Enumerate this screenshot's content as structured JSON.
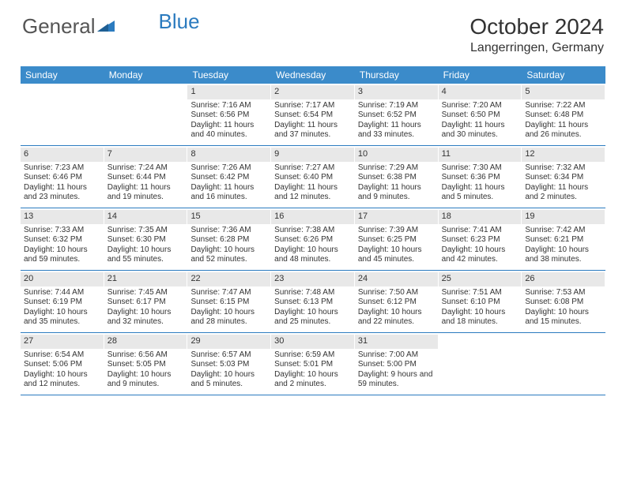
{
  "brand": {
    "part1": "General",
    "part2": "Blue"
  },
  "title": "October 2024",
  "location": "Langerringen, Germany",
  "colors": {
    "header_bg": "#3b8bca",
    "header_text": "#ffffff",
    "daynum_bg": "#e8e8e8",
    "rule": "#2b7bbf",
    "text": "#333333",
    "logo_gray": "#555555",
    "logo_blue": "#2b7bbf"
  },
  "day_headers": [
    "Sunday",
    "Monday",
    "Tuesday",
    "Wednesday",
    "Thursday",
    "Friday",
    "Saturday"
  ],
  "weeks": [
    [
      null,
      null,
      {
        "n": "1",
        "sr": "Sunrise: 7:16 AM",
        "ss": "Sunset: 6:56 PM",
        "dl": "Daylight: 11 hours and 40 minutes."
      },
      {
        "n": "2",
        "sr": "Sunrise: 7:17 AM",
        "ss": "Sunset: 6:54 PM",
        "dl": "Daylight: 11 hours and 37 minutes."
      },
      {
        "n": "3",
        "sr": "Sunrise: 7:19 AM",
        "ss": "Sunset: 6:52 PM",
        "dl": "Daylight: 11 hours and 33 minutes."
      },
      {
        "n": "4",
        "sr": "Sunrise: 7:20 AM",
        "ss": "Sunset: 6:50 PM",
        "dl": "Daylight: 11 hours and 30 minutes."
      },
      {
        "n": "5",
        "sr": "Sunrise: 7:22 AM",
        "ss": "Sunset: 6:48 PM",
        "dl": "Daylight: 11 hours and 26 minutes."
      }
    ],
    [
      {
        "n": "6",
        "sr": "Sunrise: 7:23 AM",
        "ss": "Sunset: 6:46 PM",
        "dl": "Daylight: 11 hours and 23 minutes."
      },
      {
        "n": "7",
        "sr": "Sunrise: 7:24 AM",
        "ss": "Sunset: 6:44 PM",
        "dl": "Daylight: 11 hours and 19 minutes."
      },
      {
        "n": "8",
        "sr": "Sunrise: 7:26 AM",
        "ss": "Sunset: 6:42 PM",
        "dl": "Daylight: 11 hours and 16 minutes."
      },
      {
        "n": "9",
        "sr": "Sunrise: 7:27 AM",
        "ss": "Sunset: 6:40 PM",
        "dl": "Daylight: 11 hours and 12 minutes."
      },
      {
        "n": "10",
        "sr": "Sunrise: 7:29 AM",
        "ss": "Sunset: 6:38 PM",
        "dl": "Daylight: 11 hours and 9 minutes."
      },
      {
        "n": "11",
        "sr": "Sunrise: 7:30 AM",
        "ss": "Sunset: 6:36 PM",
        "dl": "Daylight: 11 hours and 5 minutes."
      },
      {
        "n": "12",
        "sr": "Sunrise: 7:32 AM",
        "ss": "Sunset: 6:34 PM",
        "dl": "Daylight: 11 hours and 2 minutes."
      }
    ],
    [
      {
        "n": "13",
        "sr": "Sunrise: 7:33 AM",
        "ss": "Sunset: 6:32 PM",
        "dl": "Daylight: 10 hours and 59 minutes."
      },
      {
        "n": "14",
        "sr": "Sunrise: 7:35 AM",
        "ss": "Sunset: 6:30 PM",
        "dl": "Daylight: 10 hours and 55 minutes."
      },
      {
        "n": "15",
        "sr": "Sunrise: 7:36 AM",
        "ss": "Sunset: 6:28 PM",
        "dl": "Daylight: 10 hours and 52 minutes."
      },
      {
        "n": "16",
        "sr": "Sunrise: 7:38 AM",
        "ss": "Sunset: 6:26 PM",
        "dl": "Daylight: 10 hours and 48 minutes."
      },
      {
        "n": "17",
        "sr": "Sunrise: 7:39 AM",
        "ss": "Sunset: 6:25 PM",
        "dl": "Daylight: 10 hours and 45 minutes."
      },
      {
        "n": "18",
        "sr": "Sunrise: 7:41 AM",
        "ss": "Sunset: 6:23 PM",
        "dl": "Daylight: 10 hours and 42 minutes."
      },
      {
        "n": "19",
        "sr": "Sunrise: 7:42 AM",
        "ss": "Sunset: 6:21 PM",
        "dl": "Daylight: 10 hours and 38 minutes."
      }
    ],
    [
      {
        "n": "20",
        "sr": "Sunrise: 7:44 AM",
        "ss": "Sunset: 6:19 PM",
        "dl": "Daylight: 10 hours and 35 minutes."
      },
      {
        "n": "21",
        "sr": "Sunrise: 7:45 AM",
        "ss": "Sunset: 6:17 PM",
        "dl": "Daylight: 10 hours and 32 minutes."
      },
      {
        "n": "22",
        "sr": "Sunrise: 7:47 AM",
        "ss": "Sunset: 6:15 PM",
        "dl": "Daylight: 10 hours and 28 minutes."
      },
      {
        "n": "23",
        "sr": "Sunrise: 7:48 AM",
        "ss": "Sunset: 6:13 PM",
        "dl": "Daylight: 10 hours and 25 minutes."
      },
      {
        "n": "24",
        "sr": "Sunrise: 7:50 AM",
        "ss": "Sunset: 6:12 PM",
        "dl": "Daylight: 10 hours and 22 minutes."
      },
      {
        "n": "25",
        "sr": "Sunrise: 7:51 AM",
        "ss": "Sunset: 6:10 PM",
        "dl": "Daylight: 10 hours and 18 minutes."
      },
      {
        "n": "26",
        "sr": "Sunrise: 7:53 AM",
        "ss": "Sunset: 6:08 PM",
        "dl": "Daylight: 10 hours and 15 minutes."
      }
    ],
    [
      {
        "n": "27",
        "sr": "Sunrise: 6:54 AM",
        "ss": "Sunset: 5:06 PM",
        "dl": "Daylight: 10 hours and 12 minutes."
      },
      {
        "n": "28",
        "sr": "Sunrise: 6:56 AM",
        "ss": "Sunset: 5:05 PM",
        "dl": "Daylight: 10 hours and 9 minutes."
      },
      {
        "n": "29",
        "sr": "Sunrise: 6:57 AM",
        "ss": "Sunset: 5:03 PM",
        "dl": "Daylight: 10 hours and 5 minutes."
      },
      {
        "n": "30",
        "sr": "Sunrise: 6:59 AM",
        "ss": "Sunset: 5:01 PM",
        "dl": "Daylight: 10 hours and 2 minutes."
      },
      {
        "n": "31",
        "sr": "Sunrise: 7:00 AM",
        "ss": "Sunset: 5:00 PM",
        "dl": "Daylight: 9 hours and 59 minutes."
      },
      null,
      null
    ]
  ]
}
